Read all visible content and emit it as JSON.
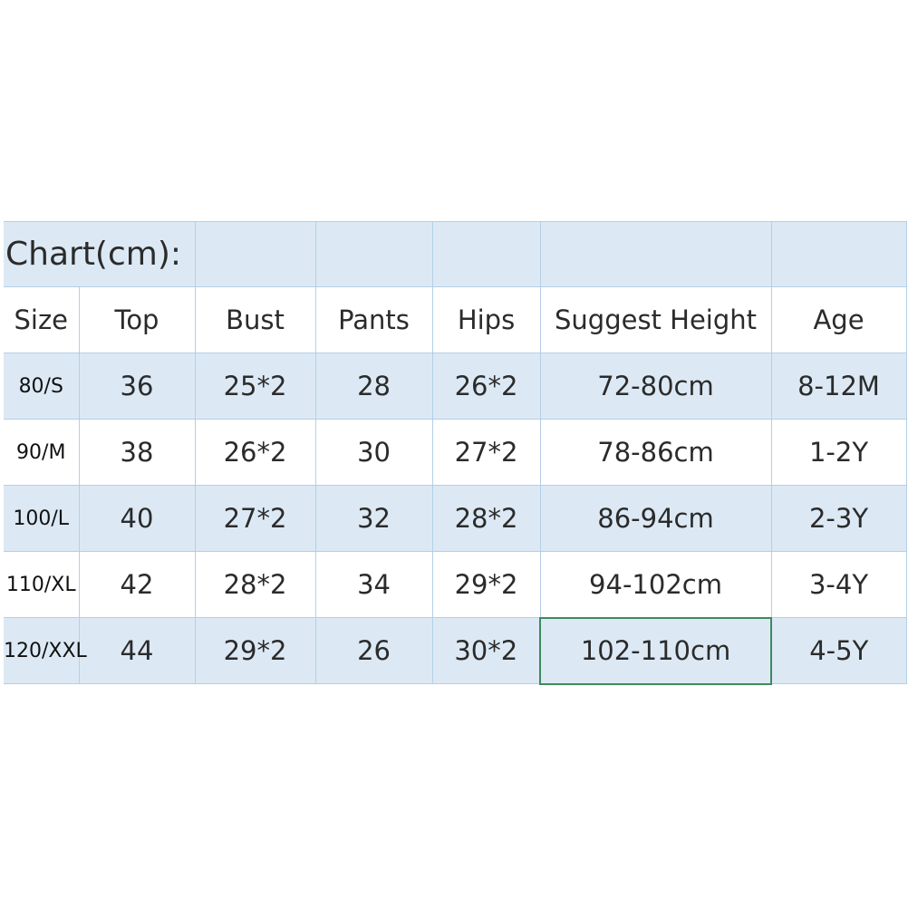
{
  "title": "Chart(cm):",
  "headers": [
    "Size",
    "Top",
    "Bust",
    "Pants",
    "Hips",
    "Suggest Height",
    "Age"
  ],
  "rows": [
    [
      "80/S",
      "36",
      "25*2",
      "28",
      "26*2",
      "72-80cm",
      "8-12M"
    ],
    [
      "90/M",
      "38",
      "26*2",
      "30",
      "27*2",
      "78-86cm",
      "1-2Y"
    ],
    [
      "100/L",
      "40",
      "27*2",
      "32",
      "28*2",
      "86-94cm",
      "2-3Y"
    ],
    [
      "110/XL",
      "42",
      "28*2",
      "34",
      "29*2",
      "94-102cm",
      "3-4Y"
    ],
    [
      "120/XXL",
      "44",
      "29*2",
      "26",
      "30*2",
      "102-110cm",
      "4-5Y"
    ]
  ],
  "colors": {
    "row_fill": "#dce9f5",
    "grid": "#b3cfe8",
    "highlight_border": "#3f8a5c"
  }
}
